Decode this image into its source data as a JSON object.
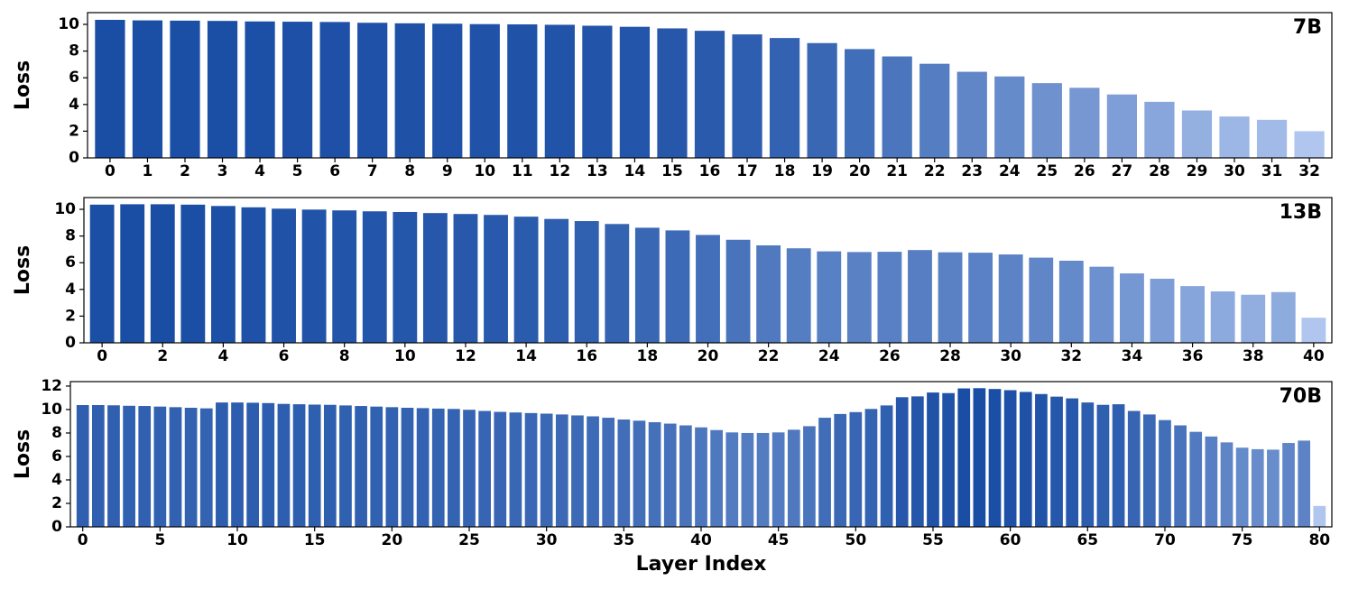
{
  "chart_data": [
    {
      "type": "bar",
      "annotation": "7B",
      "ylabel": "Loss",
      "x": [
        0,
        1,
        2,
        3,
        4,
        5,
        6,
        7,
        8,
        9,
        10,
        11,
        12,
        13,
        14,
        15,
        16,
        17,
        18,
        19,
        20,
        21,
        22,
        23,
        24,
        25,
        26,
        27,
        28,
        29,
        30,
        31,
        32
      ],
      "values": [
        10.34,
        10.3,
        10.28,
        10.26,
        10.22,
        10.2,
        10.18,
        10.12,
        10.08,
        10.05,
        10.02,
        10.0,
        9.97,
        9.9,
        9.82,
        9.7,
        9.52,
        9.25,
        8.98,
        8.6,
        8.15,
        7.6,
        7.05,
        6.45,
        6.1,
        5.6,
        5.25,
        4.75,
        4.2,
        3.55,
        3.1,
        2.85,
        2.0
      ],
      "color_range": [
        "#b0c6ef",
        "#1a4ea5"
      ],
      "xlim": [
        -0.6,
        32.6
      ],
      "ylim": [
        0,
        10.88
      ],
      "xticks": [
        0,
        1,
        2,
        3,
        4,
        5,
        6,
        7,
        8,
        9,
        10,
        11,
        12,
        13,
        14,
        15,
        16,
        17,
        18,
        19,
        20,
        21,
        22,
        23,
        24,
        25,
        26,
        27,
        28,
        29,
        30,
        31,
        32
      ],
      "yticks": [
        0,
        2,
        4,
        6,
        8,
        10
      ]
    },
    {
      "type": "bar",
      "annotation": "13B",
      "ylabel": "Loss",
      "x": [
        0,
        1,
        2,
        3,
        4,
        5,
        6,
        7,
        8,
        9,
        10,
        11,
        12,
        13,
        14,
        15,
        16,
        17,
        18,
        19,
        20,
        21,
        22,
        23,
        24,
        25,
        26,
        27,
        28,
        29,
        30,
        31,
        32,
        33,
        34,
        35,
        36,
        37,
        38,
        39,
        40
      ],
      "values": [
        10.35,
        10.38,
        10.38,
        10.35,
        10.25,
        10.15,
        10.05,
        9.98,
        9.92,
        9.85,
        9.8,
        9.72,
        9.65,
        9.58,
        9.45,
        9.28,
        9.12,
        8.9,
        8.62,
        8.42,
        8.08,
        7.72,
        7.3,
        7.08,
        6.85,
        6.8,
        6.82,
        6.95,
        6.78,
        6.75,
        6.62,
        6.38,
        6.15,
        5.7,
        5.2,
        4.8,
        4.25,
        3.85,
        3.6,
        3.8,
        1.88
      ],
      "color_range": [
        "#b0c6ef",
        "#1a4ea5"
      ],
      "xlim": [
        -0.6,
        40.6
      ],
      "ylim": [
        0,
        10.88
      ],
      "xticks": [
        0,
        2,
        4,
        6,
        8,
        10,
        12,
        14,
        16,
        18,
        20,
        22,
        24,
        26,
        28,
        30,
        32,
        34,
        36,
        38,
        40
      ],
      "yticks": [
        0,
        2,
        4,
        6,
        8,
        10
      ]
    },
    {
      "type": "bar",
      "annotation": "70B",
      "ylabel": "Loss",
      "xlabel": "Layer Index",
      "x": [
        0,
        1,
        2,
        3,
        4,
        5,
        6,
        7,
        8,
        9,
        10,
        11,
        12,
        13,
        14,
        15,
        16,
        17,
        18,
        19,
        20,
        21,
        22,
        23,
        24,
        25,
        26,
        27,
        28,
        29,
        30,
        31,
        32,
        33,
        34,
        35,
        36,
        37,
        38,
        39,
        40,
        41,
        42,
        43,
        44,
        45,
        46,
        47,
        48,
        49,
        50,
        51,
        52,
        53,
        54,
        55,
        56,
        57,
        58,
        59,
        60,
        61,
        62,
        63,
        64,
        65,
        66,
        67,
        68,
        69,
        70,
        71,
        72,
        73,
        74,
        75,
        76,
        77,
        78,
        79,
        80
      ],
      "values": [
        10.38,
        10.38,
        10.36,
        10.32,
        10.3,
        10.25,
        10.2,
        10.15,
        10.1,
        10.6,
        10.6,
        10.58,
        10.55,
        10.48,
        10.45,
        10.42,
        10.4,
        10.35,
        10.3,
        10.25,
        10.2,
        10.15,
        10.12,
        10.08,
        10.05,
        9.98,
        9.88,
        9.8,
        9.75,
        9.7,
        9.65,
        9.58,
        9.5,
        9.42,
        9.3,
        9.15,
        9.05,
        8.92,
        8.8,
        8.65,
        8.48,
        8.25,
        8.05,
        8.0,
        8.0,
        8.05,
        8.28,
        8.58,
        9.3,
        9.62,
        9.78,
        10.05,
        10.35,
        11.05,
        11.12,
        11.45,
        11.4,
        11.8,
        11.82,
        11.75,
        11.65,
        11.5,
        11.32,
        11.1,
        10.95,
        10.6,
        10.4,
        10.45,
        9.88,
        9.58,
        9.1,
        8.65,
        8.1,
        7.7,
        7.2,
        6.75,
        6.62,
        6.58,
        7.15,
        7.35,
        1.78
      ],
      "color_range": [
        "#b0c6ef",
        "#1a4ea5"
      ],
      "xlim": [
        -0.8,
        80.8
      ],
      "ylim": [
        0,
        12.38
      ],
      "xticks": [
        0,
        5,
        10,
        15,
        20,
        25,
        30,
        35,
        40,
        45,
        50,
        55,
        60,
        65,
        70,
        75,
        80
      ],
      "yticks": [
        0,
        2,
        4,
        6,
        8,
        10,
        12
      ]
    }
  ]
}
